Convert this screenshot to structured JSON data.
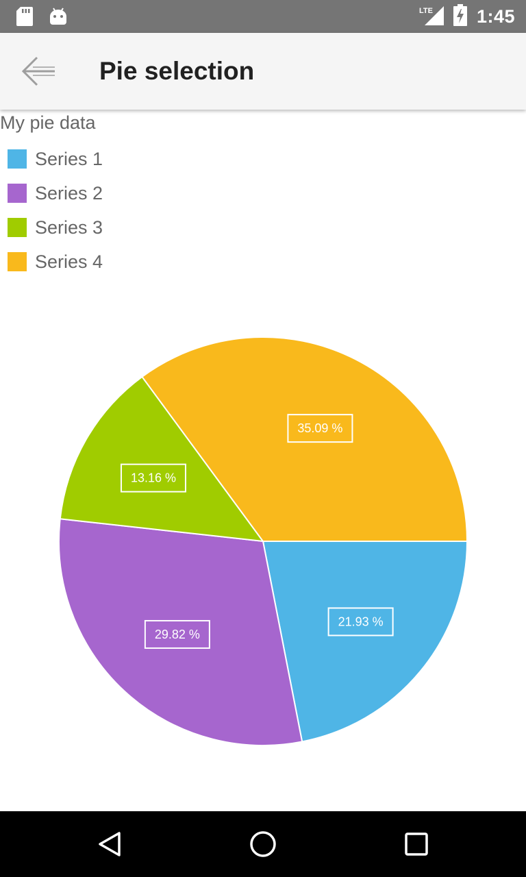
{
  "status_bar": {
    "time": "1:45",
    "network": "LTE",
    "icons": [
      "sd-card-icon",
      "android-icon",
      "lte-signal-icon",
      "battery-charging-icon"
    ]
  },
  "app_bar": {
    "title": "Pie selection",
    "back_icon": "arrow-back-icon"
  },
  "chart_data": {
    "type": "pie",
    "title": "My pie data",
    "series": [
      {
        "name": "Series 1",
        "value": 21.93,
        "label": "21.93 %",
        "color": "#4fb5e6"
      },
      {
        "name": "Series 2",
        "value": 29.82,
        "label": "29.82 %",
        "color": "#a666ce"
      },
      {
        "name": "Series 3",
        "value": 13.16,
        "label": "13.16 %",
        "color": "#a0cc00"
      },
      {
        "name": "Series 4",
        "value": 35.09,
        "label": "35.09 %",
        "color": "#f9b91c"
      }
    ],
    "direction": "clockwise from 3 o'clock",
    "legend_position": "top-left"
  },
  "nav_bar": {
    "buttons": [
      "back-triangle-icon",
      "home-circle-icon",
      "recents-square-icon"
    ]
  }
}
